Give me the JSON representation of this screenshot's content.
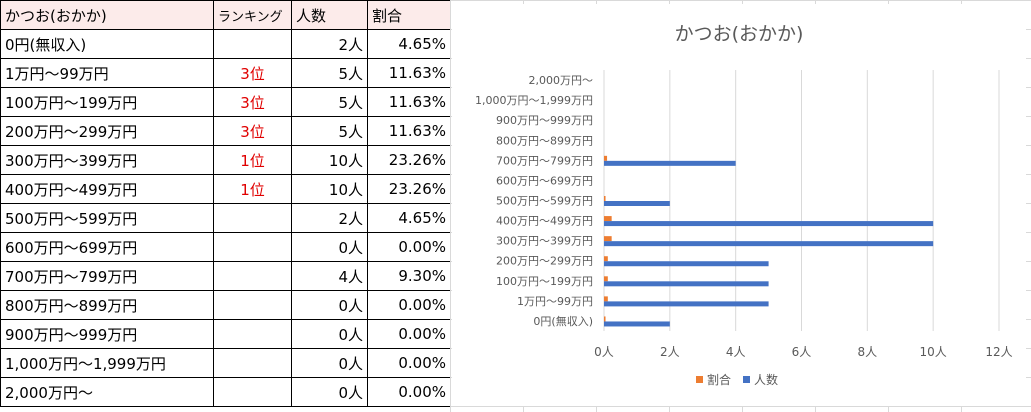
{
  "table": {
    "headers": [
      "かつお(おかか)",
      "ランキング",
      "人数",
      "割合"
    ],
    "rows": [
      {
        "name": "0円(無収入)",
        "rank": "",
        "count": "2人",
        "pct": "4.65%"
      },
      {
        "name": "1万円～99万円",
        "rank": "3位",
        "count": "5人",
        "pct": "11.63%"
      },
      {
        "name": "100万円～199万円",
        "rank": "3位",
        "count": "5人",
        "pct": "11.63%"
      },
      {
        "name": "200万円～299万円",
        "rank": "3位",
        "count": "5人",
        "pct": "11.63%"
      },
      {
        "name": "300万円～399万円",
        "rank": "1位",
        "count": "10人",
        "pct": "23.26%"
      },
      {
        "name": "400万円～499万円",
        "rank": "1位",
        "count": "10人",
        "pct": "23.26%"
      },
      {
        "name": "500万円～599万円",
        "rank": "",
        "count": "2人",
        "pct": "4.65%"
      },
      {
        "name": "600万円～699万円",
        "rank": "",
        "count": "0人",
        "pct": "0.00%"
      },
      {
        "name": "700万円～799万円",
        "rank": "",
        "count": "4人",
        "pct": "9.30%"
      },
      {
        "name": "800万円～899万円",
        "rank": "",
        "count": "0人",
        "pct": "0.00%"
      },
      {
        "name": "900万円～999万円",
        "rank": "",
        "count": "0人",
        "pct": "0.00%"
      },
      {
        "name": "1,000万円～1,999万円",
        "rank": "",
        "count": "0人",
        "pct": "0.00%"
      },
      {
        "name": "2,000万円～",
        "rank": "",
        "count": "0人",
        "pct": "0.00%"
      }
    ]
  },
  "chart_data": {
    "type": "bar",
    "orientation": "horizontal",
    "title": "かつお(おかか)",
    "categories": [
      "0円(無収入)",
      "1万円～99万円",
      "100万円～199万円",
      "200万円～299万円",
      "300万円～399万円",
      "400万円～499万円",
      "500万円～599万円",
      "600万円～699万円",
      "700万円～799万円",
      "800万円～899万円",
      "900万円～999万円",
      "1,000万円～1,999万円",
      "2,000万円～"
    ],
    "series": [
      {
        "name": "人数",
        "values": [
          2,
          5,
          5,
          5,
          10,
          10,
          2,
          0,
          4,
          0,
          0,
          0,
          0
        ],
        "color": "#4472c4"
      },
      {
        "name": "割合",
        "values": [
          0.0465,
          0.1163,
          0.1163,
          0.1163,
          0.2326,
          0.2326,
          0.0465,
          0,
          0.093,
          0,
          0,
          0,
          0
        ],
        "color": "#ed7d31"
      }
    ],
    "xlim": [
      0,
      12
    ],
    "xticks": [
      "0人",
      "2人",
      "4人",
      "6人",
      "8人",
      "10人",
      "12人"
    ],
    "grid": true,
    "legend": "bottom",
    "legend_labels": [
      "割合",
      "人数"
    ]
  }
}
